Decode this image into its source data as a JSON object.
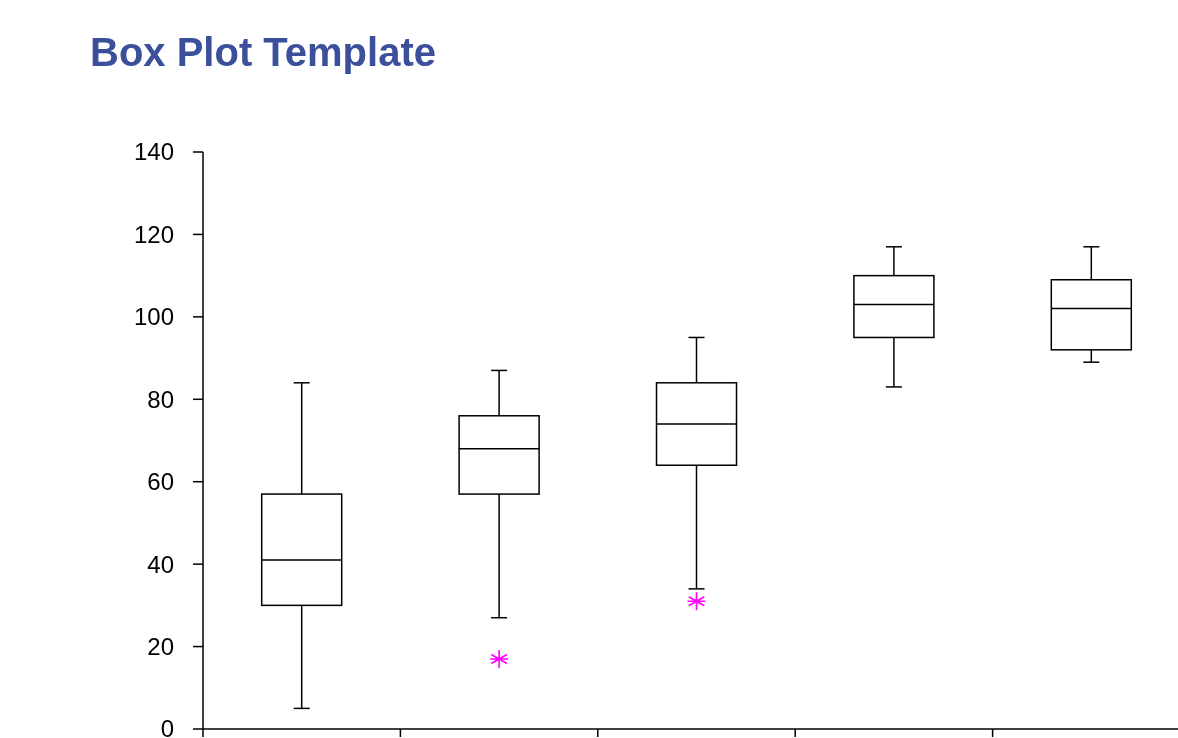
{
  "chart_data": {
    "type": "box",
    "title": "Box Plot Template",
    "categories": [
      null,
      null,
      null,
      null,
      null
    ],
    "series": [
      {
        "color": "#000000",
        "boxes": [
          {
            "low": 5,
            "q1": 30,
            "median": 41,
            "q3": 57,
            "high": 84
          },
          {
            "low": 27,
            "q1": 57,
            "median": 68,
            "q3": 76,
            "high": 87,
            "outliers": [
              17
            ]
          },
          {
            "low": 34,
            "q1": 64,
            "median": 74,
            "q3": 84,
            "high": 95,
            "outliers": [
              31
            ]
          },
          {
            "low": 83,
            "q1": 95,
            "median": 103,
            "q3": 110,
            "high": 117
          },
          {
            "low": 89,
            "q1": 92,
            "median": 102,
            "q3": 109,
            "high": 117
          }
        ]
      }
    ],
    "marker": "star",
    "ylim": [
      0,
      140
    ],
    "yticks": [
      0,
      20,
      40,
      60,
      80,
      100,
      120,
      140
    ],
    "grid": false
  }
}
